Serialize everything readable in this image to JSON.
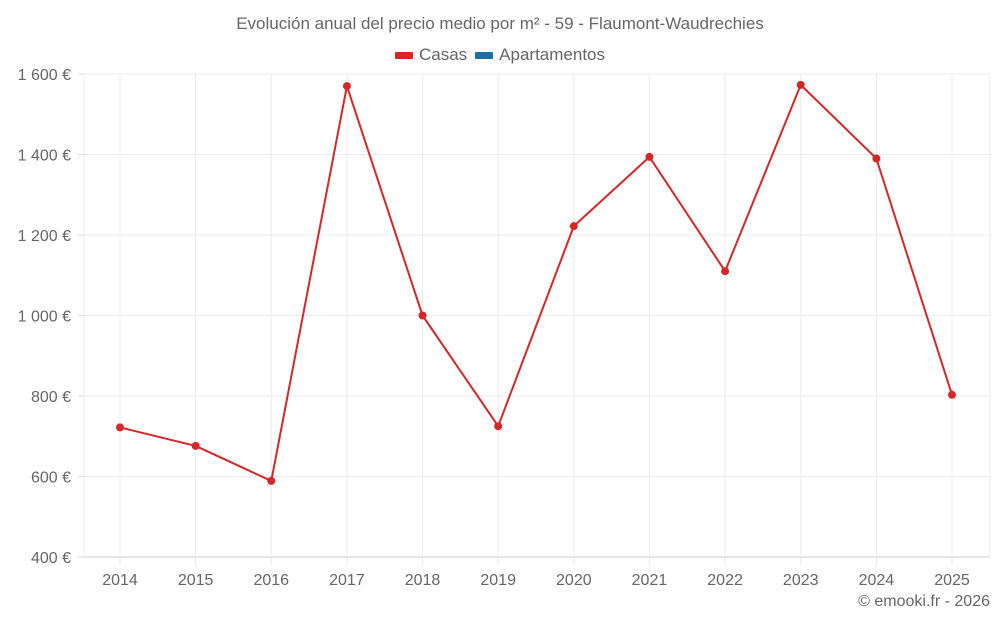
{
  "title": "Evolución anual del precio medio por m² - 59 - Flaumont-Waudrechies",
  "legend": [
    {
      "label": "Casas",
      "color": "#d62728"
    },
    {
      "label": "Apartamentos",
      "color": "#1f6fa6"
    }
  ],
  "footer": "© emooki.fr - 2026",
  "chart_data": {
    "type": "line",
    "title": "Evolución anual del precio medio por m² - 59 - Flaumont-Waudrechies",
    "xlabel": "",
    "ylabel": "",
    "categories": [
      "2014",
      "2015",
      "2016",
      "2017",
      "2018",
      "2019",
      "2020",
      "2021",
      "2022",
      "2023",
      "2024",
      "2025"
    ],
    "series": [
      {
        "name": "Casas",
        "color": "#d62728",
        "values": [
          722,
          676,
          589,
          1570,
          1000,
          725,
          1222,
          1394,
          1110,
          1573,
          1390,
          803
        ]
      },
      {
        "name": "Apartamentos",
        "color": "#1f6fa6",
        "values": []
      }
    ],
    "ylim": [
      400,
      1600
    ],
    "yticks": [
      400,
      600,
      800,
      1000,
      1200,
      1400,
      1600
    ],
    "ytick_labels": [
      "400 €",
      "600 €",
      "800 €",
      "1 000 €",
      "1 200 €",
      "1 400 €",
      "1 600 €"
    ],
    "grid": true,
    "legend_position": "top"
  }
}
